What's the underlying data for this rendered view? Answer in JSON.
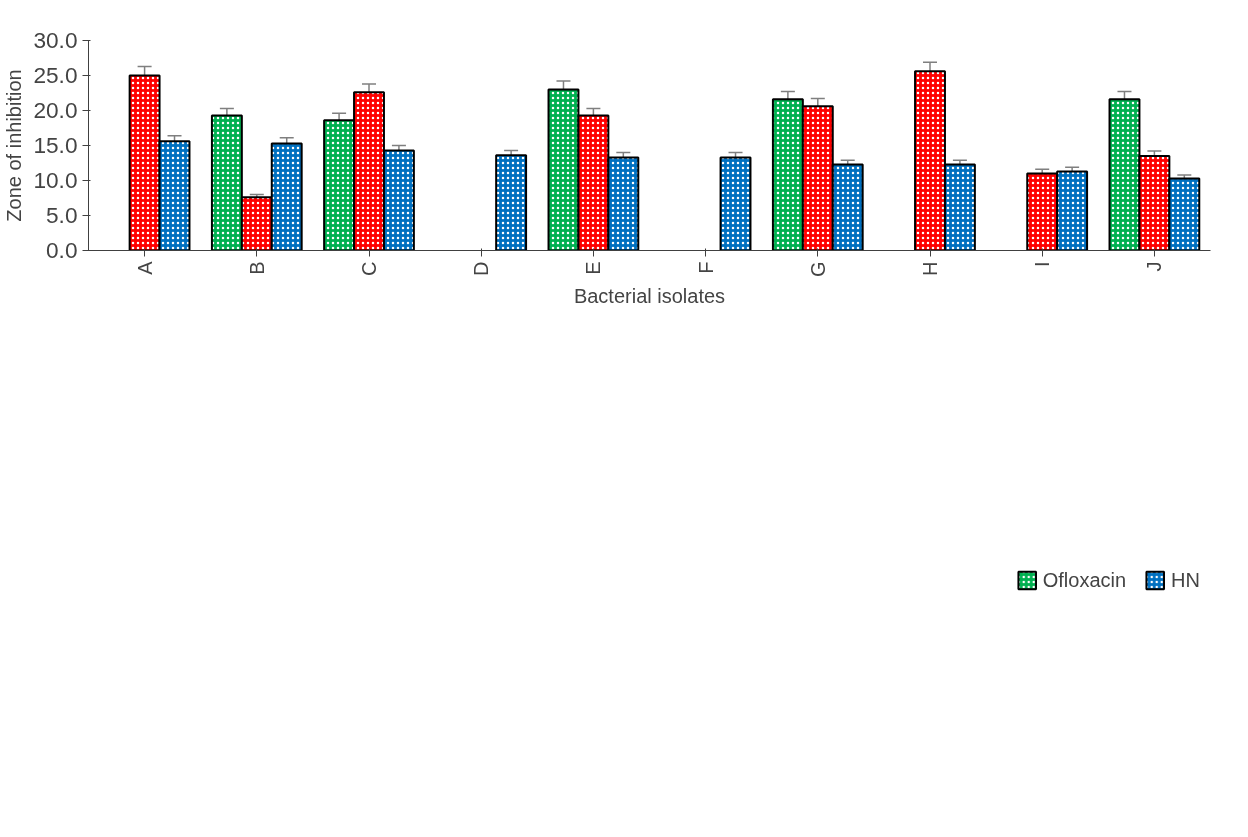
{
  "chart_data": {
    "type": "bar",
    "xlabel": "Bacterial isolates",
    "ylabel": "Zone of inhibition",
    "categories": [
      "A",
      "B",
      "C",
      "D",
      "E",
      "F",
      "G",
      "H",
      "I",
      "J"
    ],
    "series": [
      {
        "name": "Ofloxacin",
        "color": "#00b050",
        "values": [
          null,
          19.3,
          18.6,
          null,
          23.0,
          null,
          21.6,
          null,
          null,
          21.6
        ],
        "errors": [
          null,
          1.0,
          1.0,
          null,
          1.2,
          null,
          1.1,
          null,
          null,
          1.1
        ]
      },
      {
        "color": "#ff0000",
        "values": [
          25.0,
          7.6,
          22.6,
          null,
          19.3,
          null,
          20.6,
          25.6,
          11.0,
          13.5
        ],
        "errors": [
          1.3,
          0.4,
          1.2,
          null,
          1.0,
          null,
          1.1,
          1.3,
          0.6,
          0.7
        ]
      },
      {
        "name": "HN",
        "color": "#0070c0",
        "values": [
          15.6,
          15.3,
          14.3,
          13.6,
          13.3,
          13.3,
          12.3,
          12.3,
          11.3,
          10.3
        ],
        "errors": [
          0.8,
          0.8,
          0.7,
          0.7,
          0.7,
          0.7,
          0.6,
          0.6,
          0.6,
          0.5
        ]
      }
    ],
    "ylim": [
      0,
      30
    ],
    "yticks": [
      {
        "value": 0,
        "label": "0.0"
      },
      {
        "value": 5,
        "label": "5.0"
      },
      {
        "value": 10,
        "label": "10.0"
      },
      {
        "value": 15,
        "label": "15.0"
      },
      {
        "value": 20,
        "label": "20.0"
      },
      {
        "value": 25,
        "label": "25.0"
      },
      {
        "value": 30,
        "label": "30.0"
      }
    ],
    "grid": false,
    "legend": "bottom"
  }
}
